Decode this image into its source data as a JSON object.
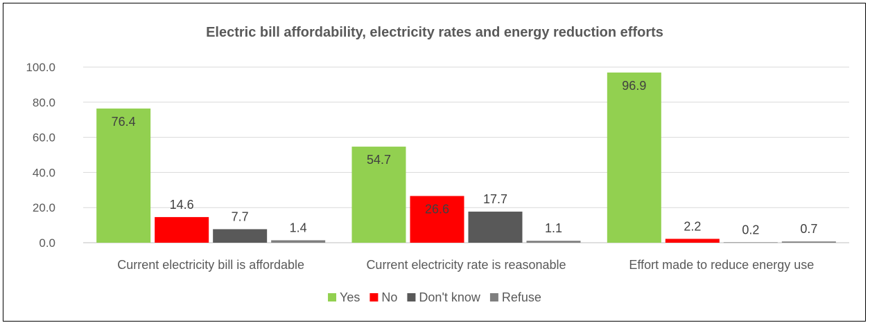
{
  "chart_data": {
    "type": "bar",
    "title": "Electric bill affordability, electricity rates and energy reduction efforts",
    "xlabel": "",
    "ylabel": "",
    "ylim": [
      0,
      100
    ],
    "yticks": [
      "0.0",
      "20.0",
      "40.0",
      "60.0",
      "80.0",
      "100.0"
    ],
    "grid": true,
    "legend_position": "bottom",
    "categories": [
      "Current electricity bill is affordable",
      "Current electricity rate is reasonable",
      "Effort made to reduce energy use"
    ],
    "series": [
      {
        "name": "Yes",
        "color": "#92D050",
        "values": [
          76.4,
          54.7,
          96.9
        ],
        "labels": [
          "76.4",
          "54.7",
          "96.9"
        ]
      },
      {
        "name": "No",
        "color": "#FF0000",
        "values": [
          14.6,
          26.6,
          2.2
        ],
        "labels": [
          "14.6",
          "26.6",
          "2.2"
        ]
      },
      {
        "name": "Don't know",
        "color": "#595959",
        "values": [
          7.7,
          17.7,
          0.2
        ],
        "labels": [
          "7.7",
          "17.7",
          "0.2"
        ]
      },
      {
        "name": "Refuse",
        "color": "#7F7F7F",
        "values": [
          1.4,
          1.1,
          0.7
        ],
        "labels": [
          "1.4",
          "1.1",
          "0.7"
        ]
      }
    ]
  }
}
